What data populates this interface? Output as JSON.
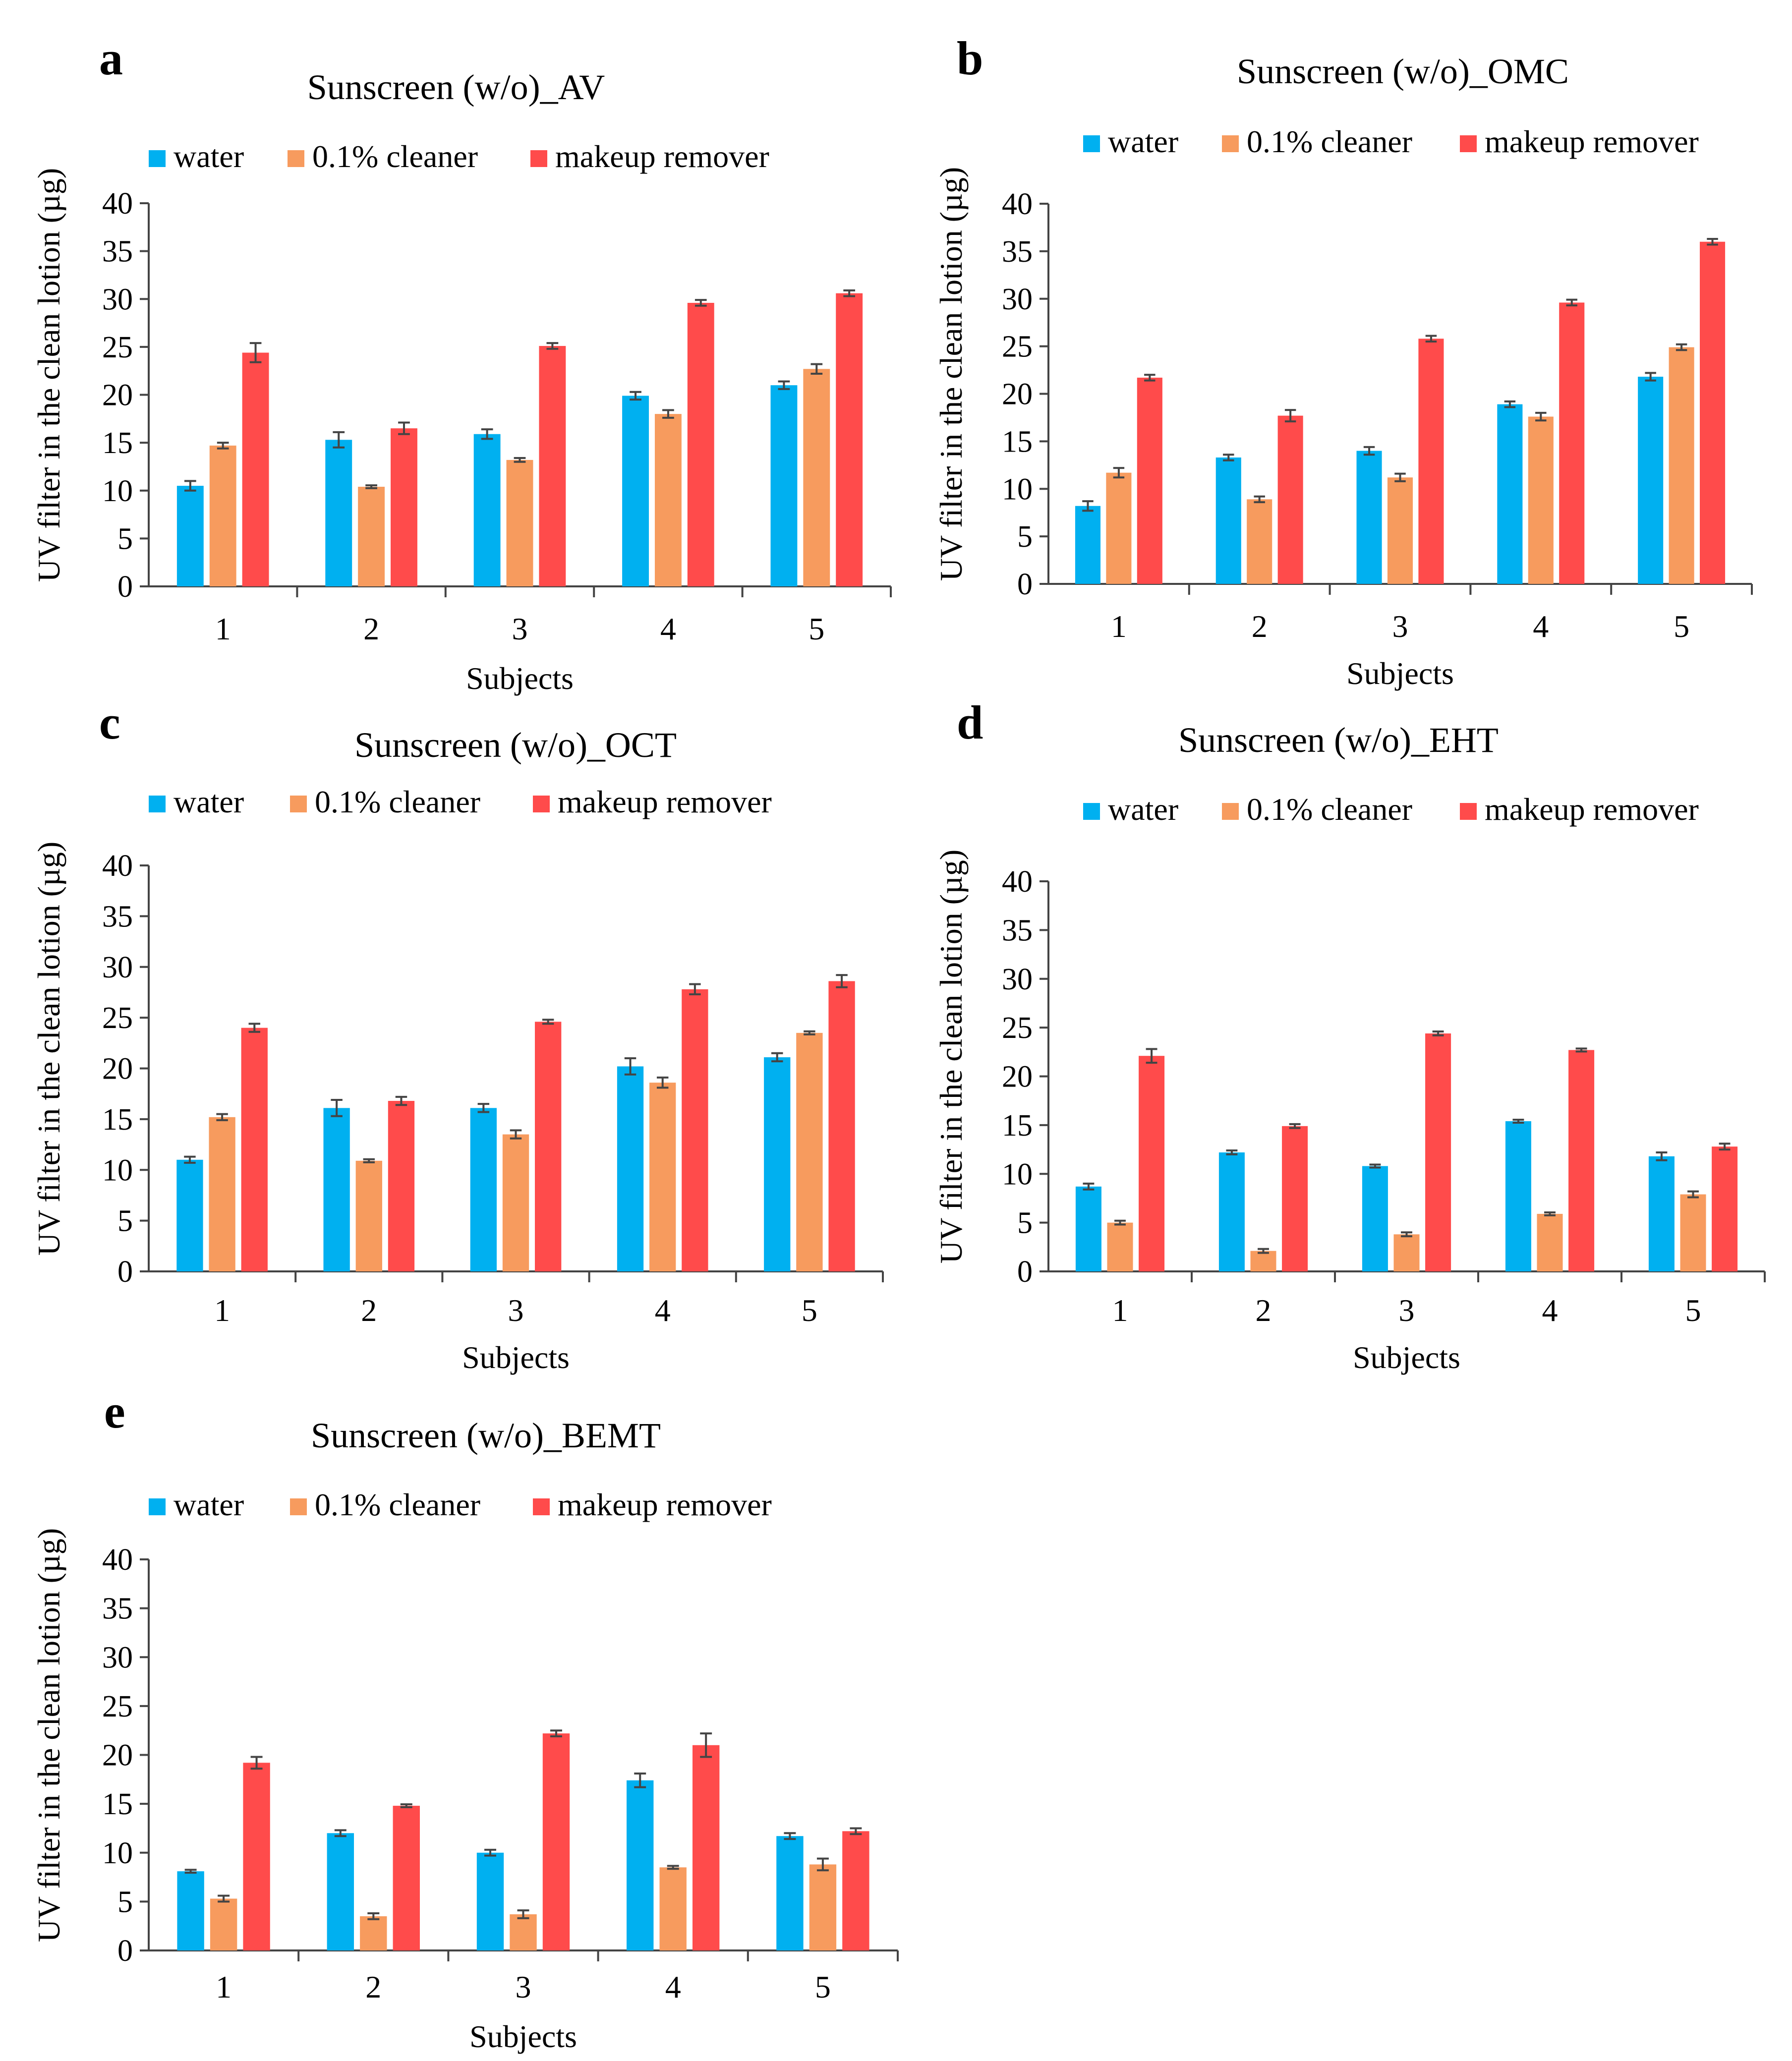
{
  "figure": {
    "colors": {
      "water": "#00b0f0",
      "cleaner": "#f79b5e",
      "remover": "#ff4b4b",
      "axis": "#444444",
      "text": "#000000"
    }
  },
  "chart_data": [
    {
      "type": "bar",
      "panel_label": "a",
      "title": "Sunscreen (w/o)_AV",
      "xlabel": "Subjects",
      "ylabel": "UV  filter in the clean lotion  (µg)",
      "categories": [
        "1",
        "2",
        "3",
        "4",
        "5"
      ],
      "ylim": [
        0,
        40
      ],
      "yticks": [
        0,
        5,
        10,
        15,
        20,
        25,
        30,
        35,
        40
      ],
      "legend_position": "top",
      "series": [
        {
          "name": "water",
          "color": "#00b0f0",
          "values": [
            10.5,
            15.3,
            15.9,
            19.9,
            21.0
          ],
          "errors": [
            0.5,
            0.8,
            0.5,
            0.4,
            0.4
          ]
        },
        {
          "name": "0.1% cleaner",
          "color": "#f79b5e",
          "values": [
            14.7,
            10.4,
            13.2,
            18.0,
            22.7
          ],
          "errors": [
            0.3,
            0.15,
            0.2,
            0.4,
            0.5
          ]
        },
        {
          "name": "makeup remover",
          "color": "#ff4b4b",
          "values": [
            24.4,
            16.5,
            25.1,
            29.6,
            30.6
          ],
          "errors": [
            1.0,
            0.6,
            0.3,
            0.3,
            0.3
          ]
        }
      ]
    },
    {
      "type": "bar",
      "panel_label": "b",
      "title": "Sunscreen (w/o)_OMC",
      "xlabel": "Subjects",
      "ylabel": "UV  filter in the clean lotion  (µg)",
      "categories": [
        "1",
        "2",
        "3",
        "4",
        "5"
      ],
      "ylim": [
        0,
        40
      ],
      "yticks": [
        0,
        5,
        10,
        15,
        20,
        25,
        30,
        35,
        40
      ],
      "legend_position": "top",
      "series": [
        {
          "name": "water",
          "color": "#00b0f0",
          "values": [
            8.2,
            13.3,
            14.0,
            18.9,
            21.8
          ],
          "errors": [
            0.5,
            0.3,
            0.4,
            0.3,
            0.4
          ]
        },
        {
          "name": "0.1% cleaner",
          "color": "#f79b5e",
          "values": [
            11.7,
            8.9,
            11.2,
            17.6,
            24.9
          ],
          "errors": [
            0.5,
            0.3,
            0.4,
            0.4,
            0.3
          ]
        },
        {
          "name": "makeup remover",
          "color": "#ff4b4b",
          "values": [
            21.7,
            17.7,
            25.8,
            29.6,
            36.0
          ],
          "errors": [
            0.3,
            0.6,
            0.3,
            0.3,
            0.3
          ]
        }
      ]
    },
    {
      "type": "bar",
      "panel_label": "c",
      "title": "Sunscreen (w/o)_OCT",
      "xlabel": "Subjects",
      "ylabel": "UV  filter in the clean lotion  (µg)",
      "categories": [
        "1",
        "2",
        "3",
        "4",
        "5"
      ],
      "ylim": [
        0,
        40
      ],
      "yticks": [
        0,
        5,
        10,
        15,
        20,
        25,
        30,
        35,
        40
      ],
      "legend_position": "top",
      "series": [
        {
          "name": "water",
          "color": "#00b0f0",
          "values": [
            11.0,
            16.1,
            16.1,
            20.2,
            21.1
          ],
          "errors": [
            0.3,
            0.8,
            0.4,
            0.8,
            0.4
          ]
        },
        {
          "name": "0.1% cleaner",
          "color": "#f79b5e",
          "values": [
            15.2,
            10.9,
            13.5,
            18.6,
            23.5
          ],
          "errors": [
            0.3,
            0.15,
            0.4,
            0.5,
            0.15
          ]
        },
        {
          "name": "makeup remover",
          "color": "#ff4b4b",
          "values": [
            24.0,
            16.8,
            24.6,
            27.8,
            28.6
          ],
          "errors": [
            0.4,
            0.4,
            0.2,
            0.5,
            0.6
          ]
        }
      ]
    },
    {
      "type": "bar",
      "panel_label": "d",
      "title": "Sunscreen (w/o)_EHT",
      "xlabel": "Subjects",
      "ylabel": "UV  filter in the clean lotion  (µg)",
      "categories": [
        "1",
        "2",
        "3",
        "4",
        "5"
      ],
      "ylim": [
        0,
        40
      ],
      "yticks": [
        0,
        5,
        10,
        15,
        20,
        25,
        30,
        35,
        40
      ],
      "legend_position": "top",
      "series": [
        {
          "name": "water",
          "color": "#00b0f0",
          "values": [
            8.7,
            12.2,
            10.8,
            15.4,
            11.8
          ],
          "errors": [
            0.3,
            0.2,
            0.15,
            0.15,
            0.4
          ]
        },
        {
          "name": "0.1% cleaner",
          "color": "#f79b5e",
          "values": [
            5.0,
            2.1,
            3.8,
            5.9,
            7.9
          ],
          "errors": [
            0.2,
            0.2,
            0.2,
            0.15,
            0.3
          ]
        },
        {
          "name": "makeup remover",
          "color": "#ff4b4b",
          "values": [
            22.1,
            14.9,
            24.4,
            22.7,
            12.8
          ],
          "errors": [
            0.7,
            0.2,
            0.2,
            0.15,
            0.3
          ]
        }
      ]
    },
    {
      "type": "bar",
      "panel_label": "e",
      "title": "Sunscreen (w/o)_BEMT",
      "xlabel": "Subjects",
      "ylabel": "UV  filter in the clean lotion  (µg)",
      "categories": [
        "1",
        "2",
        "3",
        "4",
        "5"
      ],
      "ylim": [
        0,
        40
      ],
      "yticks": [
        0,
        5,
        10,
        15,
        20,
        25,
        30,
        35,
        40
      ],
      "legend_position": "top",
      "series": [
        {
          "name": "water",
          "color": "#00b0f0",
          "values": [
            8.1,
            12.0,
            10.0,
            17.4,
            11.7
          ],
          "errors": [
            0.15,
            0.3,
            0.3,
            0.7,
            0.3
          ]
        },
        {
          "name": "0.1% cleaner",
          "color": "#f79b5e",
          "values": [
            5.3,
            3.5,
            3.7,
            8.5,
            8.8
          ],
          "errors": [
            0.3,
            0.3,
            0.4,
            0.15,
            0.6
          ]
        },
        {
          "name": "makeup remover",
          "color": "#ff4b4b",
          "values": [
            19.2,
            14.8,
            22.2,
            21.0,
            12.2
          ],
          "errors": [
            0.6,
            0.15,
            0.3,
            1.2,
            0.3
          ]
        }
      ]
    }
  ]
}
